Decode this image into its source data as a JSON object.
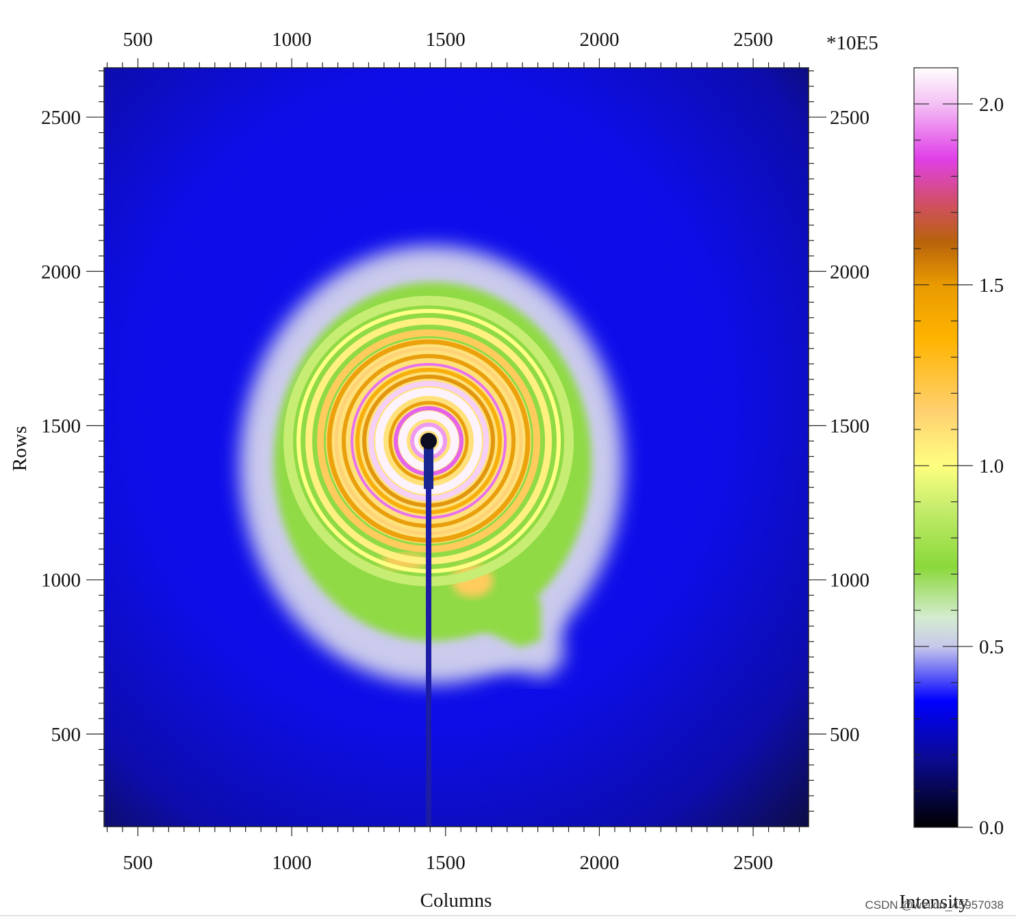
{
  "chart_data": {
    "type": "heatmap",
    "title": "",
    "xlabel": "Columns",
    "ylabel": "Rows",
    "colorbar_label": "Intensity",
    "colorbar_scale": "*10E5",
    "x_range": [
      390,
      2680
    ],
    "y_range": [
      200,
      2660
    ],
    "x_ticks": [
      500,
      1000,
      1500,
      2000,
      2500
    ],
    "y_ticks": [
      500,
      1000,
      1500,
      2000,
      2500
    ],
    "x_tick_labels": [
      "500",
      "1000",
      "1500",
      "2000",
      "2500"
    ],
    "y_tick_labels": [
      "500",
      "1000",
      "1500",
      "2000",
      "2500"
    ],
    "colorbar_range": [
      0.0,
      2.1
    ],
    "colorbar_ticks": [
      0.0,
      0.5,
      1.0,
      1.5,
      2.0
    ],
    "colorbar_tick_labels": [
      "0.0",
      "0.5",
      "1.0",
      "1.5",
      "2.0"
    ],
    "colormap": [
      {
        "value": 0.0,
        "color": "#000000"
      },
      {
        "value": 0.18,
        "color": "#0a0a8c"
      },
      {
        "value": 0.35,
        "color": "#0000ff"
      },
      {
        "value": 0.5,
        "color": "#c8c8ec"
      },
      {
        "value": 0.58,
        "color": "#d4ecd0"
      },
      {
        "value": 0.72,
        "color": "#8ad83a"
      },
      {
        "value": 0.88,
        "color": "#c4ec6c"
      },
      {
        "value": 1.0,
        "color": "#ffff80"
      },
      {
        "value": 1.15,
        "color": "#ffd070"
      },
      {
        "value": 1.35,
        "color": "#ffb400"
      },
      {
        "value": 1.5,
        "color": "#e89a00"
      },
      {
        "value": 1.62,
        "color": "#b8620c"
      },
      {
        "value": 1.72,
        "color": "#d05060"
      },
      {
        "value": 1.85,
        "color": "#e040e8"
      },
      {
        "value": 2.0,
        "color": "#f4c0f4"
      },
      {
        "value": 2.1,
        "color": "#ffffff"
      }
    ],
    "beam_center": {
      "x": 1445,
      "y": 1450
    },
    "grid": false,
    "legend": "colorbar-right"
  },
  "watermark": "CSDN @weixin_45957038"
}
